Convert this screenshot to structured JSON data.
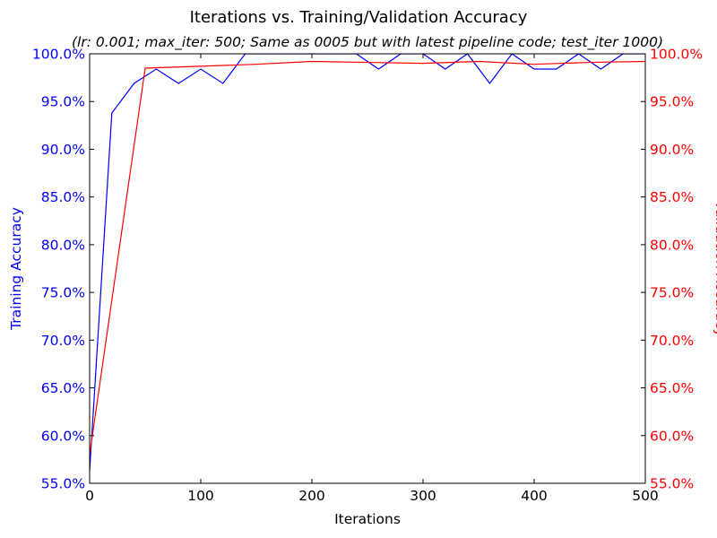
{
  "chart_data": {
    "type": "line",
    "title": "Iterations vs. Training/Validation Accuracy",
    "subtitle": "(lr: 0.001; max_iter: 500; Same as 0005 but with latest pipeline code; test_iter 1000)",
    "xlabel": "Iterations",
    "ylabel_left": "Training Accuracy",
    "ylabel_right": "Validation Accuracy",
    "xlim": [
      0,
      500
    ],
    "ylim": [
      55,
      100
    ],
    "x_ticks": [
      0,
      100,
      200,
      300,
      400,
      500
    ],
    "y_ticks": [
      55,
      60,
      65,
      70,
      75,
      80,
      85,
      90,
      95,
      100
    ],
    "y_tick_labels": [
      "55.0%",
      "60.0%",
      "65.0%",
      "70.0%",
      "75.0%",
      "80.0%",
      "85.0%",
      "90.0%",
      "95.0%",
      "100.0%"
    ],
    "grid": false,
    "series": [
      {
        "name": "Training Accuracy",
        "axis": "left",
        "color": "#0000ff",
        "x": [
          0,
          20,
          40,
          60,
          80,
          100,
          120,
          140,
          160,
          180,
          200,
          220,
          240,
          260,
          280,
          300,
          320,
          340,
          360,
          380,
          400,
          420,
          440,
          460,
          480,
          500
        ],
        "values": [
          56.3,
          93.8,
          96.9,
          98.4,
          96.9,
          98.4,
          96.9,
          100.0,
          100.0,
          100.0,
          100.0,
          100.0,
          100.0,
          98.4,
          100.0,
          100.0,
          98.4,
          100.0,
          96.9,
          100.0,
          98.4,
          98.4,
          100.0,
          98.4,
          100.0,
          100.0
        ]
      },
      {
        "name": "Validation Accuracy",
        "axis": "right",
        "color": "#ff0000",
        "x": [
          0,
          50,
          100,
          150,
          200,
          250,
          300,
          350,
          400,
          450,
          500
        ],
        "values": [
          58.0,
          98.5,
          98.7,
          98.9,
          99.2,
          99.1,
          99.0,
          99.2,
          98.9,
          99.1,
          99.2
        ]
      }
    ]
  }
}
